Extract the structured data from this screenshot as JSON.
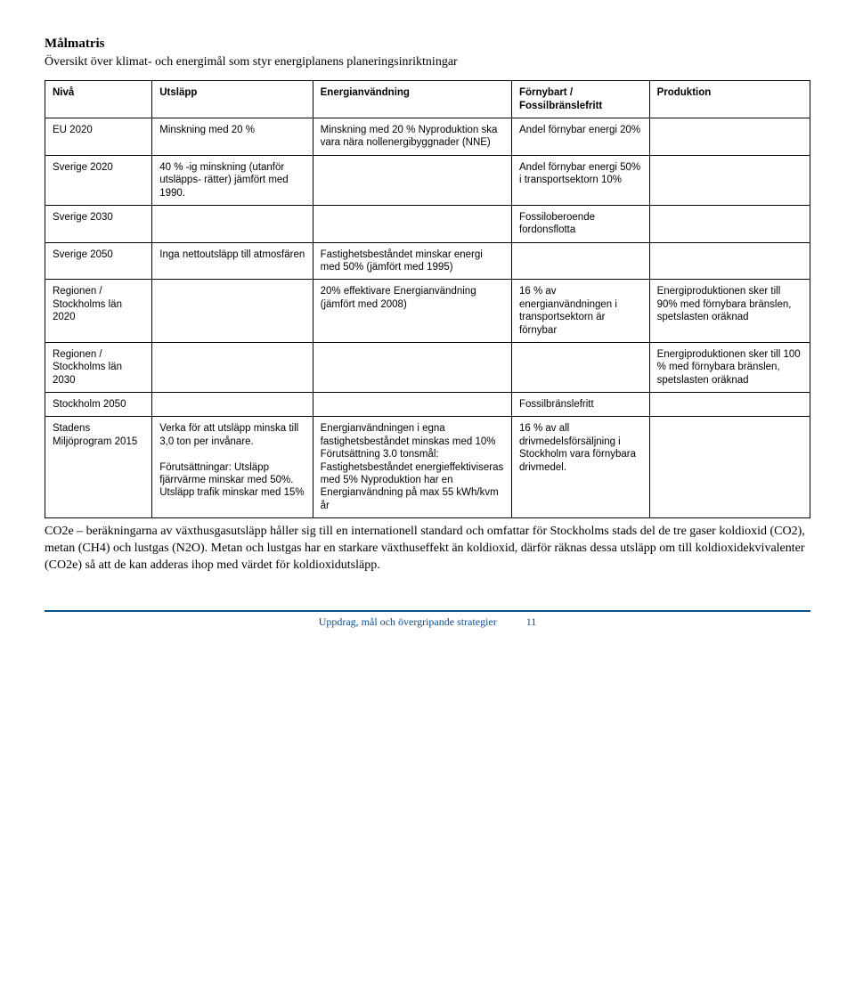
{
  "header": {
    "title": "Målmatris",
    "subtitle": "Översikt över klimat- och energimål som styr energiplanens planeringsinriktningar"
  },
  "table": {
    "columns": {
      "c1": "Nivå",
      "c2": "Utsläpp",
      "c3": "Energianvändning",
      "c4": "Förnybart / Fossilbränslefritt",
      "c5": "Produktion"
    },
    "rows": {
      "eu2020": {
        "c1": "EU 2020",
        "c2": "Minskning med 20 %",
        "c3": "Minskning med 20 % Nyproduktion ska vara nära nollenergibyggnader (NNE)",
        "c4": "Andel förnybar energi 20%",
        "c5": ""
      },
      "sverige2020": {
        "c1": "Sverige 2020",
        "c2": "40 % -ig minskning (utanför utsläpps-   rätter) jämfört med 1990.",
        "c3": "",
        "c4": "Andel förnybar energi 50% i transportsektorn 10%",
        "c5": ""
      },
      "sverige2030": {
        "c1": "Sverige 2030",
        "c2": "",
        "c3": "",
        "c4": "Fossiloberoende fordonsflotta",
        "c5": ""
      },
      "sverige2050": {
        "c1": "Sverige 2050",
        "c2": "Inga nettoutsläpp till atmosfären",
        "c3": "Fastighetsbeståndet minskar energi med 50% (jämfört med 1995)",
        "c4": "",
        "c5": ""
      },
      "region2020": {
        "c1": "Regionen / Stockholms län 2020",
        "c2": "",
        "c3": "20% effektivare Energianvändning  (jämfört med 2008)",
        "c4": "16 % av energianvändningen i transportsektorn är förnybar",
        "c5": "Energiproduktionen sker till 90% med förnybara bränslen, spetslasten oräknad"
      },
      "region2030": {
        "c1": "Regionen / Stockholms län 2030",
        "c2": "",
        "c3": "",
        "c4": "",
        "c5": "Energiproduktionen sker till 100 % med förnybara bränslen, spetslasten oräknad"
      },
      "stockholm2050": {
        "c1": "Stockholm 2050",
        "c2": "",
        "c3": "",
        "c4": "Fossilbränslefritt",
        "c5": ""
      },
      "stadens2015": {
        "c1": "Stadens Miljöprogram 2015",
        "c2": "Verka för att utsläpp minska till 3,0 ton per invånare.\n\nFörutsättningar: Utsläpp fjärrvärme minskar med 50%. Utsläpp trafik minskar med 15%",
        "c3": "Energianvändningen i egna fastighetsbeståndet minskas med  10%\nFörutsättning 3.0 tonsmål: Fastighetsbeståndet energieffektiviseras med 5% Nyproduktion har en Energianvändning på max 55 kWh/kvm år",
        "c4": "16 % av all drivmedelsförsäljning i Stockholm vara förnybara drivmedel.",
        "c5": ""
      }
    }
  },
  "bodytext": "CO2e – beräkningarna av växthusgasutsläpp håller sig till en internationell standard och omfattar för Stockholms stads del de tre gaser koldioxid (CO2), metan (CH4) och lustgas (N2O). Metan och lustgas har en starkare växthuseffekt än koldioxid, därför räknas dessa utsläpp om till koldioxidekvivalenter (CO2e) så att de kan adderas ihop med värdet för koldioxidutsläpp.",
  "footer": {
    "text": "Uppdrag, mål och övergripande strategier",
    "page": "11"
  }
}
